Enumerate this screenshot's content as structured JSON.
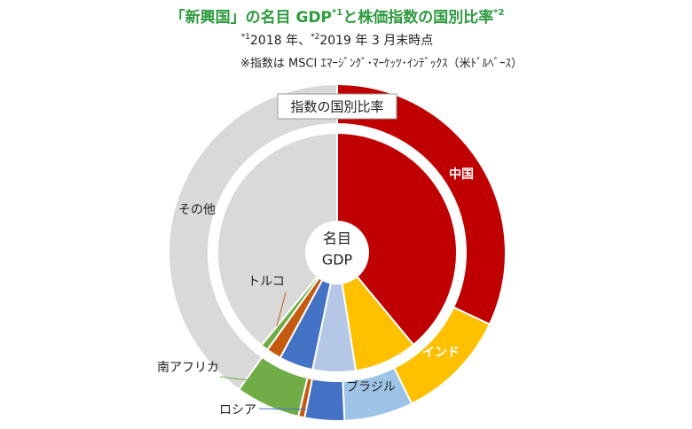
{
  "chart_data": {
    "type": "donut",
    "title_parts": [
      "「新興国」の名目 GDP",
      "*1",
      "と株価指数の国別比率",
      "*2"
    ],
    "subtitle_parts": [
      "*1",
      "2018 年、",
      "*2",
      "2019 年 3 月末時点"
    ],
    "note": "※指数は MSCI ｴﾏｰｼﾞﾝｸﾞ･ﾏｰｹｯﾂ･ｲﾝﾃﾞｯｸｽ（米ﾄﾞﾙﾍﾞｰｽ）",
    "outer_label": "指数の国別比率",
    "inner_label": [
      "名目",
      "GDP"
    ],
    "categories": [
      "中国",
      "インド",
      "ブラジル",
      "ロシア",
      "トルコ",
      "南アフリカ",
      "その他"
    ],
    "series": [
      {
        "ring": "outer",
        "colors": [
          "#c00000",
          "#ffc000",
          "#9dc3e6",
          "#4472c4",
          "#c55a11",
          "#70ad47",
          "#d9d9d9"
        ],
        "values": [
          32,
          10.7,
          6.6,
          3.8,
          0.6,
          6.2,
          40.1
        ]
      },
      {
        "ring": "inner",
        "colors": [
          "#c00000",
          "#ffc000",
          "#b4c7e7",
          "#4472c4",
          "#c55a11",
          "#70ad47",
          "#d9d9d9"
        ],
        "values": [
          39,
          8.5,
          5.8,
          4.6,
          2,
          1,
          39.1
        ]
      }
    ]
  }
}
